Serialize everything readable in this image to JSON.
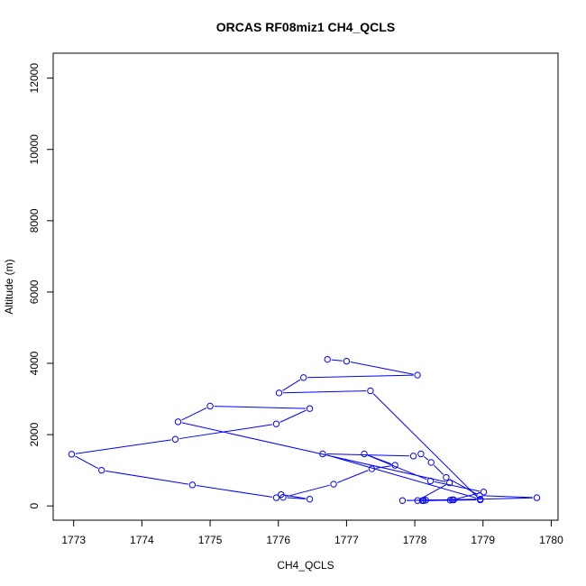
{
  "chart_data": {
    "type": "line",
    "title": "ORCAS RF08miz1 CH4_QCLS",
    "xlabel": "CH4_QCLS",
    "ylabel": "Altitude (m)",
    "xlim": [
      1772.7,
      1780.1
    ],
    "ylim": [
      -400,
      12700
    ],
    "x_ticks": [
      1773,
      1774,
      1775,
      1776,
      1777,
      1778,
      1779,
      1780
    ],
    "y_ticks": [
      0,
      2000,
      4000,
      6000,
      8000,
      10000,
      12000
    ],
    "grid": false,
    "markers": "open-circle",
    "colors": {
      "series": "#0000ff",
      "axes": "#000000"
    },
    "series": [
      {
        "points": [
          [
            1778.11,
            150
          ],
          [
            1778.13,
            150
          ],
          [
            1778.52,
            160
          ],
          [
            1778.57,
            170
          ],
          [
            1779.79,
            230
          ],
          [
            1778.95,
            290
          ],
          [
            1778.46,
            800
          ],
          [
            1778.24,
            1220
          ],
          [
            1778.09,
            1460
          ],
          [
            1777.98,
            1400
          ],
          [
            1776.65,
            1460
          ],
          [
            1778.96,
            190
          ],
          [
            1777.82,
            150
          ],
          [
            1778.16,
            160
          ],
          [
            1778.55,
            170
          ],
          [
            1779.01,
            390
          ],
          [
            1778.23,
            700
          ],
          [
            1777.26,
            1460
          ],
          [
            1777.71,
            1140
          ],
          [
            1777.37,
            1040
          ],
          [
            1776.81,
            610
          ],
          [
            1776.07,
            240
          ],
          [
            1776.46,
            190
          ],
          [
            1776.04,
            320
          ],
          [
            1775.97,
            230
          ],
          [
            1774.74,
            590
          ],
          [
            1773.41,
            1000
          ],
          [
            1772.97,
            1450
          ],
          [
            1774.49,
            1870
          ],
          [
            1775.97,
            2300
          ],
          [
            1776.46,
            2730
          ],
          [
            1775.0,
            2800
          ],
          [
            1774.53,
            2360
          ],
          [
            1778.51,
            650
          ],
          [
            1778.04,
            150
          ],
          [
            1778.96,
            170
          ],
          [
            1777.35,
            3230
          ],
          [
            1776.01,
            3170
          ],
          [
            1776.37,
            3600
          ],
          [
            1778.04,
            3670
          ],
          [
            1777.0,
            4060
          ],
          [
            1776.72,
            4110
          ]
        ]
      }
    ]
  }
}
